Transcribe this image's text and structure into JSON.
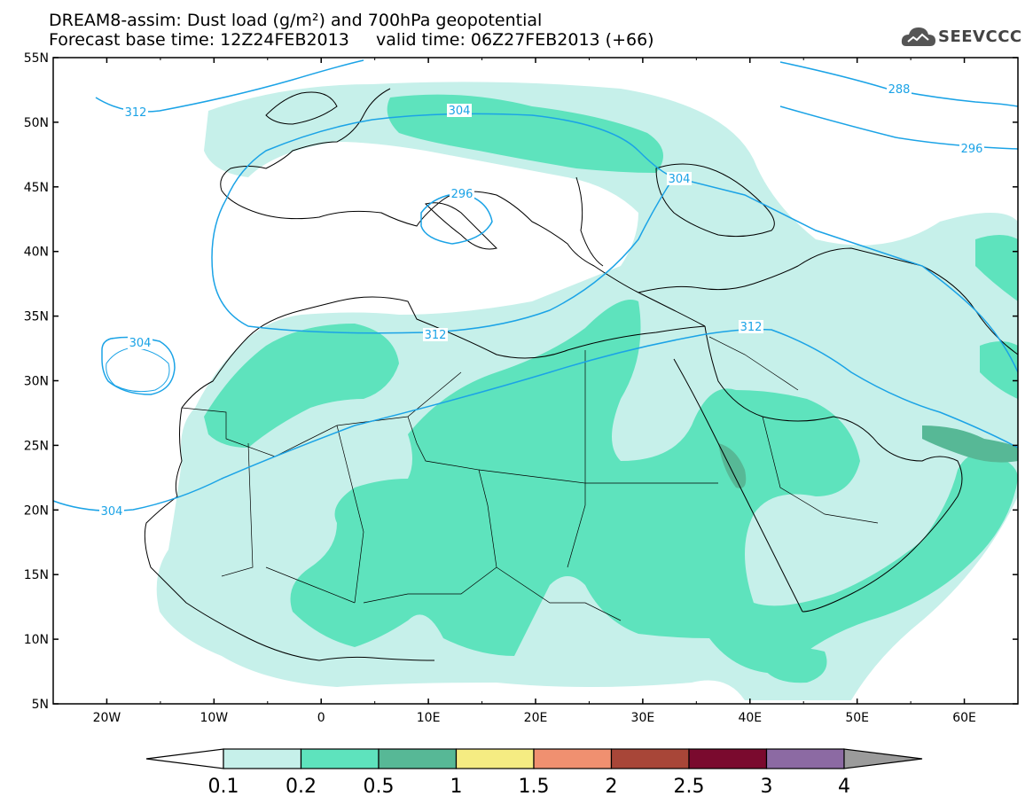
{
  "header": {
    "title_line1": "DREAM8-assim: Dust load (g/m²) and 700hPa geopotential",
    "title_line2": "Forecast base time: 12Z24FEB2013     valid time: 06Z27FEB2013 (+66)",
    "logo_text": "SEEVCCC"
  },
  "map": {
    "lon_range": [
      -25,
      65
    ],
    "lat_range": [
      5,
      55
    ],
    "lat_labels": [
      "55N",
      "50N",
      "45N",
      "40N",
      "35N",
      "30N",
      "25N",
      "20N",
      "15N",
      "10N",
      "5N"
    ],
    "lon_labels": [
      "20W",
      "10W",
      "0",
      "10E",
      "20E",
      "30E",
      "40E",
      "50E",
      "60E"
    ],
    "contour_color": "#1ba3e6",
    "contour_labels": [
      "312",
      "304",
      "288",
      "296",
      "296",
      "304",
      "304",
      "312",
      "312",
      "304"
    ]
  },
  "colorbar": {
    "labels": [
      "0.1",
      "0.2",
      "0.5",
      "1",
      "1.5",
      "2",
      "2.5",
      "3",
      "4"
    ],
    "colors": [
      "#c6f0ea",
      "#5ee3bd",
      "#57b896",
      "#f5ec82",
      "#f09070",
      "#a84638",
      "#7a0a2e",
      "#8c6aa3"
    ],
    "below_color": "#ffffff",
    "above_color": "#9b9b9b"
  }
}
